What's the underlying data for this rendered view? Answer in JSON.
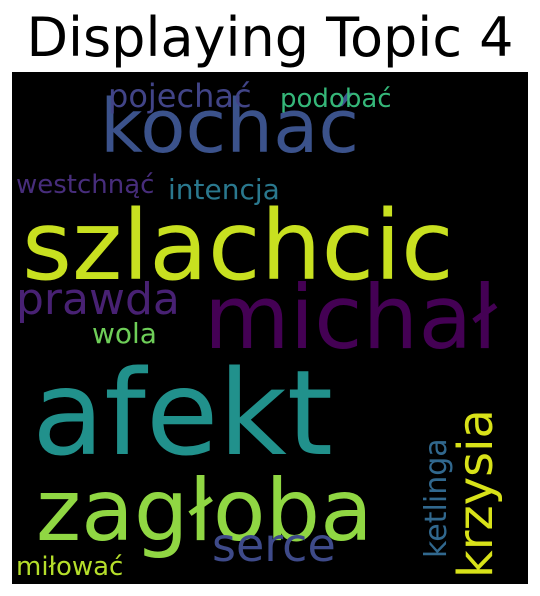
{
  "title": "Displaying Topic 4",
  "words": [
    {
      "text": "kochać",
      "color": "#3b528b"
    },
    {
      "text": "szlachcic",
      "color": "#c8e020"
    },
    {
      "text": "michał",
      "color": "#440154"
    },
    {
      "text": "afekt",
      "color": "#21918c"
    },
    {
      "text": "zagłoba",
      "color": "#90d743"
    },
    {
      "text": "krzysia",
      "color": "#d8e219"
    },
    {
      "text": "prawda",
      "color": "#482173"
    },
    {
      "text": "serce",
      "color": "#3e4a89"
    },
    {
      "text": "pojechać",
      "color": "#414487"
    },
    {
      "text": "podobać",
      "color": "#35b779"
    },
    {
      "text": "westchnąć",
      "color": "#472d7b"
    },
    {
      "text": "intencja",
      "color": "#2a788e"
    },
    {
      "text": "wola",
      "color": "#6ece58"
    },
    {
      "text": "ketlinga",
      "color": "#31688e"
    },
    {
      "text": "miłować",
      "color": "#b5de2b"
    }
  ]
}
